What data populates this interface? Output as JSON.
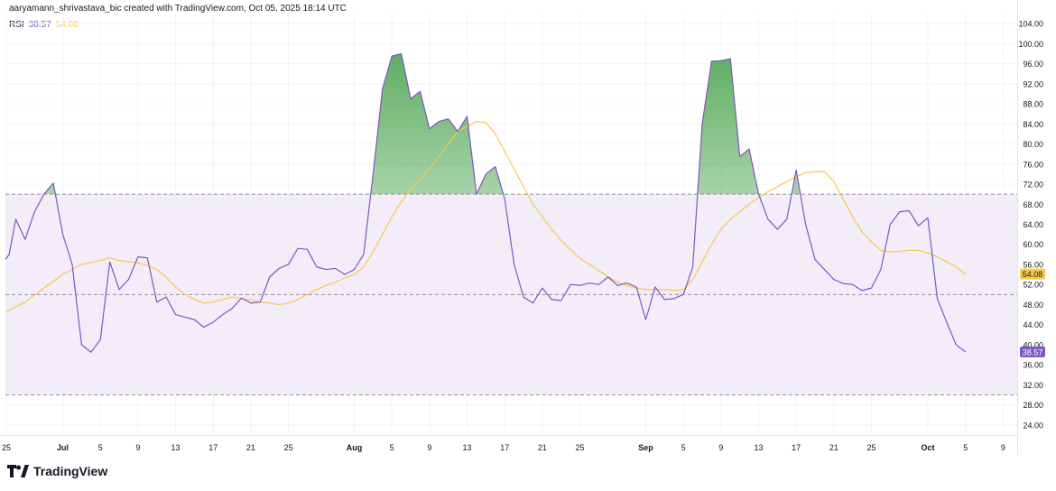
{
  "header": {
    "credit": "aaryamann_shrivastava_bic created with TradingView.com, Oct 05, 2025 18:14 UTC"
  },
  "legend": {
    "name": "RSI",
    "rsi_value": "38.57",
    "ma_value": "54.08"
  },
  "footer": {
    "brand": "TradingView"
  },
  "colors": {
    "rsi": "#7e57c2",
    "ma": "#f7c948",
    "band_fill": "#ede7f6",
    "overbought_fill": "#43a047",
    "grid": "#e0e3eb",
    "axis_text": "#131722"
  },
  "chart_data": {
    "type": "line",
    "ylim": [
      22,
      106
    ],
    "y_ticks": [
      "104.00",
      "100.00",
      "96.00",
      "92.00",
      "88.00",
      "84.00",
      "80.00",
      "76.00",
      "72.00",
      "68.00",
      "64.00",
      "60.00",
      "56.00",
      "52.00",
      "48.00",
      "44.00",
      "40.00",
      "36.00",
      "32.00",
      "28.00",
      "24.00"
    ],
    "y_tick_values": [
      104,
      100,
      96,
      92,
      88,
      84,
      80,
      76,
      72,
      68,
      64,
      60,
      56,
      52,
      48,
      44,
      40,
      36,
      32,
      28,
      24
    ],
    "x_ticks": [
      {
        "label": "25",
        "day": 0
      },
      {
        "label": "Jul",
        "day": 6,
        "bold": true
      },
      {
        "label": "5",
        "day": 10
      },
      {
        "label": "9",
        "day": 14
      },
      {
        "label": "13",
        "day": 18
      },
      {
        "label": "17",
        "day": 22
      },
      {
        "label": "21",
        "day": 26
      },
      {
        "label": "25",
        "day": 30
      },
      {
        "label": "Aug",
        "day": 37,
        "bold": true
      },
      {
        "label": "5",
        "day": 41
      },
      {
        "label": "9",
        "day": 45
      },
      {
        "label": "13",
        "day": 49
      },
      {
        "label": "17",
        "day": 53
      },
      {
        "label": "21",
        "day": 57
      },
      {
        "label": "25",
        "day": 61
      },
      {
        "label": "Sep",
        "day": 68,
        "bold": true
      },
      {
        "label": "5",
        "day": 72
      },
      {
        "label": "9",
        "day": 76
      },
      {
        "label": "13",
        "day": 80
      },
      {
        "label": "17",
        "day": 84
      },
      {
        "label": "21",
        "day": 88
      },
      {
        "label": "25",
        "day": 92
      },
      {
        "label": "Oct",
        "day": 98,
        "bold": true
      },
      {
        "label": "5",
        "day": 102
      },
      {
        "label": "9",
        "day": 106
      }
    ],
    "x_range": [
      -0.1,
      107.5
    ],
    "bands": {
      "upper": 70,
      "middle": 50,
      "lower": 30
    },
    "rsi_label": "38.57",
    "ma_label": "54.08",
    "series": [
      {
        "key": "rsi",
        "values": [
          [
            -0.1,
            57.0
          ],
          [
            0.3,
            58.0
          ],
          [
            1,
            65.0
          ],
          [
            2,
            61.0
          ],
          [
            3,
            66.5
          ],
          [
            4,
            70.0
          ],
          [
            5,
            72.2
          ],
          [
            6,
            62.0
          ],
          [
            7,
            56.0
          ],
          [
            8,
            40.0
          ],
          [
            9,
            38.5
          ],
          [
            10,
            41.0
          ],
          [
            11,
            56.5
          ],
          [
            12,
            51.0
          ],
          [
            13,
            53.0
          ],
          [
            14,
            57.5
          ],
          [
            15,
            57.3
          ],
          [
            16,
            48.5
          ],
          [
            17,
            49.5
          ],
          [
            18,
            46.0
          ],
          [
            19,
            45.5
          ],
          [
            20,
            45.0
          ],
          [
            21,
            43.5
          ],
          [
            22,
            44.5
          ],
          [
            23,
            46.0
          ],
          [
            24,
            47.2
          ],
          [
            25,
            49.3
          ],
          [
            26,
            48.3
          ],
          [
            27,
            48.5
          ],
          [
            28,
            53.5
          ],
          [
            29,
            55.2
          ],
          [
            30,
            56.0
          ],
          [
            31,
            59.2
          ],
          [
            32,
            59.0
          ],
          [
            33,
            55.5
          ],
          [
            34,
            55.0
          ],
          [
            35,
            55.2
          ],
          [
            36,
            54.0
          ],
          [
            37,
            55.0
          ],
          [
            38,
            58.0
          ],
          [
            39,
            74.0
          ],
          [
            40,
            91.0
          ],
          [
            41,
            97.5
          ],
          [
            42,
            98.0
          ],
          [
            43,
            89.0
          ],
          [
            44,
            90.5
          ],
          [
            45,
            83.0
          ],
          [
            46,
            84.5
          ],
          [
            47,
            85.0
          ],
          [
            48,
            82.5
          ],
          [
            49,
            85.5
          ],
          [
            50,
            70.0
          ],
          [
            51,
            74.0
          ],
          [
            52,
            75.5
          ],
          [
            53,
            69.0
          ],
          [
            54,
            56.0
          ],
          [
            55,
            49.5
          ],
          [
            56,
            48.3
          ],
          [
            57,
            51.3
          ],
          [
            58,
            49.0
          ],
          [
            59,
            48.8
          ],
          [
            60,
            52.0
          ],
          [
            61,
            51.8
          ],
          [
            62,
            52.3
          ],
          [
            63,
            52.0
          ],
          [
            64,
            53.5
          ],
          [
            65,
            51.8
          ],
          [
            66,
            52.3
          ],
          [
            67,
            51.5
          ],
          [
            68,
            45.0
          ],
          [
            69,
            51.5
          ],
          [
            70,
            49.0
          ],
          [
            71,
            49.2
          ],
          [
            72,
            50.0
          ],
          [
            73,
            55.5
          ],
          [
            74,
            84.0
          ],
          [
            75,
            96.5
          ],
          [
            76,
            96.6
          ],
          [
            77,
            97.0
          ],
          [
            78,
            77.5
          ],
          [
            79,
            79.0
          ],
          [
            80,
            70.0
          ],
          [
            81,
            65.0
          ],
          [
            82,
            63.0
          ],
          [
            83,
            65.0
          ],
          [
            84,
            74.8
          ],
          [
            85,
            64.0
          ],
          [
            86,
            57.0
          ],
          [
            87,
            55.0
          ],
          [
            88,
            53.0
          ],
          [
            89,
            52.2
          ],
          [
            90,
            52.0
          ],
          [
            91,
            50.8
          ],
          [
            92,
            51.3
          ],
          [
            93,
            55.0
          ],
          [
            94,
            64.0
          ],
          [
            95,
            66.5
          ],
          [
            96,
            66.7
          ],
          [
            97,
            63.7
          ],
          [
            98,
            65.3
          ],
          [
            99,
            49.2
          ],
          [
            100,
            44.5
          ],
          [
            101,
            40.0
          ],
          [
            102,
            38.57
          ]
        ]
      },
      {
        "key": "ma",
        "values": [
          [
            -0.1,
            46.5
          ],
          [
            2,
            48.5
          ],
          [
            4,
            51.3
          ],
          [
            6,
            54.0
          ],
          [
            8,
            56.0
          ],
          [
            10,
            56.8
          ],
          [
            11,
            57.3
          ],
          [
            12,
            56.8
          ],
          [
            14,
            56.3
          ],
          [
            15,
            55.8
          ],
          [
            16,
            55.0
          ],
          [
            17,
            53.5
          ],
          [
            18,
            51.5
          ],
          [
            19,
            50.0
          ],
          [
            20,
            49.0
          ],
          [
            21,
            48.3
          ],
          [
            22,
            48.5
          ],
          [
            23,
            49.0
          ],
          [
            24,
            49.5
          ],
          [
            25,
            49.2
          ],
          [
            26,
            48.9
          ],
          [
            27,
            48.5
          ],
          [
            28,
            48.3
          ],
          [
            29,
            48.0
          ],
          [
            30,
            48.3
          ],
          [
            31,
            49.0
          ],
          [
            32,
            50.0
          ],
          [
            33,
            51.0
          ],
          [
            34,
            51.8
          ],
          [
            35,
            52.5
          ],
          [
            36,
            53.3
          ],
          [
            37,
            54.0
          ],
          [
            38,
            55.5
          ],
          [
            39,
            58.5
          ],
          [
            40,
            62.0
          ],
          [
            41,
            65.5
          ],
          [
            42,
            68.5
          ],
          [
            43,
            71.0
          ],
          [
            44,
            73.0
          ],
          [
            45,
            75.0
          ],
          [
            46,
            77.5
          ],
          [
            47,
            80.0
          ],
          [
            48,
            82.5
          ],
          [
            49,
            83.5
          ],
          [
            50,
            84.5
          ],
          [
            51,
            84.3
          ],
          [
            52,
            82.0
          ],
          [
            53,
            78.5
          ],
          [
            54,
            75.0
          ],
          [
            55,
            71.5
          ],
          [
            56,
            68.0
          ],
          [
            57,
            65.5
          ],
          [
            58,
            63.0
          ],
          [
            59,
            60.8
          ],
          [
            60,
            59.0
          ],
          [
            61,
            57.2
          ],
          [
            62,
            56.0
          ],
          [
            63,
            54.8
          ],
          [
            64,
            53.5
          ],
          [
            65,
            52.5
          ],
          [
            66,
            51.8
          ],
          [
            67,
            51.3
          ],
          [
            68,
            51.0
          ],
          [
            69,
            51.0
          ],
          [
            70,
            51.0
          ],
          [
            71,
            50.8
          ],
          [
            72,
            51.0
          ],
          [
            73,
            53.0
          ],
          [
            74,
            56.5
          ],
          [
            75,
            60.0
          ],
          [
            76,
            63.0
          ],
          [
            77,
            65.0
          ],
          [
            78,
            66.5
          ],
          [
            79,
            68.0
          ],
          [
            80,
            69.3
          ],
          [
            81,
            70.5
          ],
          [
            82,
            71.5
          ],
          [
            83,
            72.5
          ],
          [
            84,
            73.5
          ],
          [
            85,
            74.3
          ],
          [
            86,
            74.5
          ],
          [
            87,
            74.5
          ],
          [
            88,
            72.5
          ],
          [
            89,
            69.0
          ],
          [
            90,
            65.5
          ],
          [
            91,
            62.5
          ],
          [
            92,
            60.5
          ],
          [
            93,
            58.8
          ],
          [
            94,
            58.5
          ],
          [
            95,
            58.6
          ],
          [
            96,
            58.8
          ],
          [
            97,
            58.8
          ],
          [
            98,
            58.3
          ],
          [
            99,
            57.5
          ],
          [
            100,
            56.5
          ],
          [
            101,
            55.5
          ],
          [
            102,
            54.08
          ]
        ]
      }
    ]
  }
}
